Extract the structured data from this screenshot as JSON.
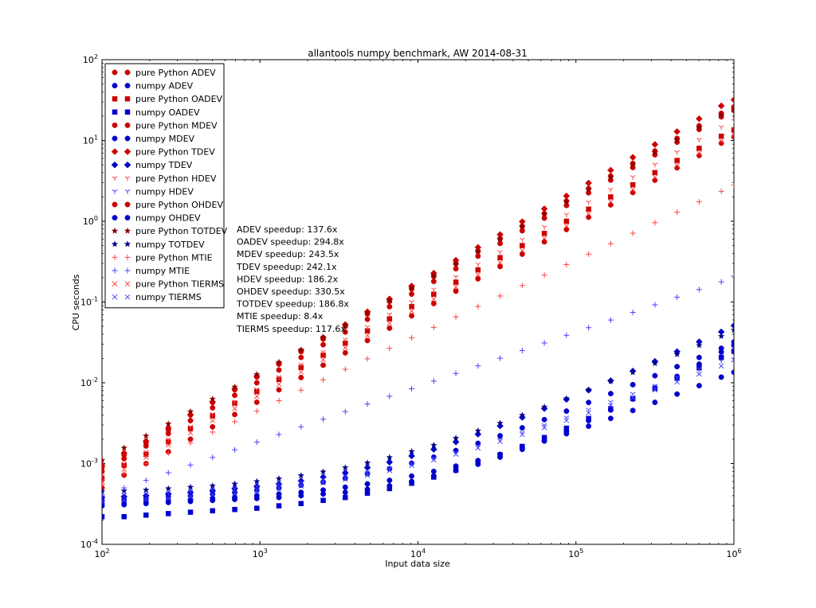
{
  "chart_data": {
    "type": "scatter",
    "title": "allantools numpy benchmark, AW 2014-08-31",
    "xlabel": "Input data size",
    "ylabel": "CPU seconds",
    "xscale": "log",
    "yscale": "log",
    "xlim": [
      100,
      1000000
    ],
    "ylim": [
      0.0001,
      100
    ],
    "x_ticks": [
      {
        "value": 100,
        "base": "10",
        "exp": "2"
      },
      {
        "value": 1000,
        "base": "10",
        "exp": "3"
      },
      {
        "value": 10000,
        "base": "10",
        "exp": "4"
      },
      {
        "value": 100000,
        "base": "10",
        "exp": "5"
      },
      {
        "value": 1000000,
        "base": "10",
        "exp": "6"
      }
    ],
    "y_ticks": [
      {
        "value": 0.0001,
        "base": "10",
        "exp": "-4"
      },
      {
        "value": 0.001,
        "base": "10",
        "exp": "-3"
      },
      {
        "value": 0.01,
        "base": "10",
        "exp": "-2"
      },
      {
        "value": 0.1,
        "base": "10",
        "exp": "-1"
      },
      {
        "value": 1,
        "base": "10",
        "exp": "0"
      },
      {
        "value": 10,
        "base": "10",
        "exp": "1"
      },
      {
        "value": 100,
        "base": "10",
        "exp": "2"
      }
    ],
    "grid": false,
    "legend_position": "top-left",
    "x": [
      100,
      138,
      190,
      263,
      363,
      501,
      692,
      955,
      1318,
      1820,
      2512,
      3467,
      4786,
      6607,
      9120,
      12589,
      17378,
      23988,
      33113,
      45709,
      63096,
      87096,
      120226,
      165959,
      229087,
      316228,
      436516,
      602560,
      831764,
      1000000
    ],
    "series": [
      {
        "name": "pure Python ADEV",
        "color": "#cc0000",
        "marker": "o",
        "values": [
          0.0009,
          0.00128,
          0.0018,
          0.0026,
          0.004,
          0.0057,
          0.0082,
          0.0118,
          0.017,
          0.0243,
          0.0348,
          0.0498,
          0.0712,
          0.1018,
          0.1455,
          0.208,
          0.297,
          0.425,
          0.608,
          0.869,
          1.243,
          1.777,
          2.54,
          3.63,
          5.19,
          7.42,
          10.61,
          15.17,
          21.69,
          26.0
        ]
      },
      {
        "name": "numpy ADEV",
        "color": "#0000cc",
        "marker": "o",
        "values": [
          0.0003,
          0.00031,
          0.00032,
          0.00033,
          0.00034,
          0.00035,
          0.00036,
          0.00037,
          0.00038,
          0.0004,
          0.00042,
          0.00044,
          0.00048,
          0.00053,
          0.0006,
          0.0007,
          0.00082,
          0.00098,
          0.0012,
          0.0015,
          0.0019,
          0.0025,
          0.0034,
          0.0046,
          0.0063,
          0.0087,
          0.012,
          0.017,
          0.024,
          0.029
        ]
      },
      {
        "name": "pure Python OADEV",
        "color": "#cc0000",
        "marker": "s",
        "values": [
          0.00065,
          0.00095,
          0.0013,
          0.00185,
          0.0027,
          0.0039,
          0.0056,
          0.0078,
          0.011,
          0.0155,
          0.022,
          0.031,
          0.044,
          0.062,
          0.088,
          0.125,
          0.176,
          0.25,
          0.354,
          0.5,
          0.707,
          1.0,
          1.41,
          2.0,
          2.83,
          4.0,
          5.66,
          8.0,
          11.3,
          13.5
        ]
      },
      {
        "name": "numpy OADEV",
        "color": "#0000cc",
        "marker": "s",
        "values": [
          0.00022,
          0.00022,
          0.00023,
          0.00024,
          0.00025,
          0.00026,
          0.00027,
          0.00028,
          0.0003,
          0.00032,
          0.00035,
          0.00038,
          0.00043,
          0.00049,
          0.00057,
          0.00068,
          0.00083,
          0.00102,
          0.00128,
          0.00163,
          0.0021,
          0.00274,
          0.00361,
          0.00478,
          0.00636,
          0.0085,
          0.0114,
          0.0153,
          0.0206,
          0.0246
        ]
      },
      {
        "name": "pure Python MDEV",
        "color": "#cc0000",
        "marker": "o",
        "values": [
          0.0008,
          0.00115,
          0.00165,
          0.00235,
          0.0034,
          0.0049,
          0.007,
          0.01,
          0.0144,
          0.0206,
          0.0296,
          0.0425,
          0.061,
          0.0875,
          0.1255,
          0.18,
          0.258,
          0.37,
          0.531,
          0.762,
          1.093,
          1.569,
          2.25,
          3.23,
          4.63,
          6.65,
          9.54,
          13.69,
          19.64,
          23.5
        ]
      },
      {
        "name": "numpy MDEV",
        "color": "#0000cc",
        "marker": "o",
        "values": [
          0.00035,
          0.00036,
          0.00037,
          0.00039,
          0.0004,
          0.00042,
          0.00044,
          0.00047,
          0.0005,
          0.00054,
          0.00059,
          0.00066,
          0.00075,
          0.00086,
          0.00101,
          0.0012,
          0.00145,
          0.00178,
          0.00221,
          0.00277,
          0.0035,
          0.00446,
          0.00571,
          0.00734,
          0.00947,
          0.01224,
          0.01586,
          0.02058,
          0.02673,
          0.032
        ]
      },
      {
        "name": "pure Python TDEV",
        "color": "#cc0000",
        "marker": "D",
        "values": [
          0.00095,
          0.00135,
          0.0019,
          0.00275,
          0.004,
          0.0058,
          0.0084,
          0.0121,
          0.0175,
          0.0252,
          0.0364,
          0.0525,
          0.0757,
          0.1093,
          0.1578,
          0.2277,
          0.3286,
          0.4742,
          0.6844,
          0.9877,
          1.4254,
          2.057,
          2.968,
          4.283,
          6.18,
          8.92,
          12.87,
          18.57,
          26.8,
          32.0
        ]
      },
      {
        "name": "numpy TDEV",
        "color": "#0000cc",
        "marker": "D",
        "values": [
          0.00038,
          0.00039,
          0.0004,
          0.00042,
          0.00044,
          0.00046,
          0.00049,
          0.00052,
          0.00056,
          0.00061,
          0.00068,
          0.00077,
          0.00089,
          0.00104,
          0.00124,
          0.0015,
          0.00185,
          0.00231,
          0.00292,
          0.00373,
          0.0048,
          0.00622,
          0.00811,
          0.01062,
          0.01396,
          0.0184,
          0.02431,
          0.03218,
          0.04266,
          0.051
        ]
      },
      {
        "name": "pure Python HDEV",
        "color": "#ff4444",
        "marker": "1",
        "values": [
          0.0007,
          0.001,
          0.0014,
          0.002,
          0.00285,
          0.0041,
          0.0058,
          0.0083,
          0.0118,
          0.0169,
          0.0241,
          0.0344,
          0.0491,
          0.0701,
          0.1001,
          0.1429,
          0.204,
          0.2912,
          0.4157,
          0.5935,
          0.8473,
          1.2096,
          1.7268,
          2.4651,
          3.519,
          5.0237,
          7.1716,
          10.238,
          14.615,
          17.5
        ]
      },
      {
        "name": "numpy HDEV",
        "color": "#4444ff",
        "marker": "1",
        "values": [
          0.0004,
          0.00041,
          0.00042,
          0.00043,
          0.00045,
          0.00047,
          0.00049,
          0.00052,
          0.00055,
          0.00059,
          0.00064,
          0.0007,
          0.00078,
          0.00088,
          0.00101,
          0.00117,
          0.00138,
          0.00165,
          0.00199,
          0.00243,
          0.00299,
          0.00371,
          0.00463,
          0.0058,
          0.00729,
          0.0092,
          0.01163,
          0.01472,
          0.01864,
          0.0223
        ]
      },
      {
        "name": "pure Python OHDEV",
        "color": "#cc0000",
        "marker": "o",
        "values": [
          0.0005,
          0.00072,
          0.001,
          0.0014,
          0.002,
          0.00285,
          0.00405,
          0.00575,
          0.00818,
          0.01162,
          0.01651,
          0.02347,
          0.03336,
          0.0474,
          0.0674,
          0.0958,
          0.1361,
          0.1935,
          0.275,
          0.3909,
          0.5557,
          0.7899,
          1.1228,
          1.596,
          2.2686,
          3.2247,
          4.5838,
          6.5157,
          9.2618,
          11.1
        ]
      },
      {
        "name": "numpy OHDEV",
        "color": "#0000cc",
        "marker": "o",
        "values": [
          0.00032,
          0.00033,
          0.00034,
          0.00035,
          0.00036,
          0.00037,
          0.00038,
          0.0004,
          0.00042,
          0.00044,
          0.00047,
          0.00051,
          0.00056,
          0.00062,
          0.0007,
          0.0008,
          0.00093,
          0.00109,
          0.0013,
          0.00157,
          0.00191,
          0.00234,
          0.0029,
          0.00362,
          0.00454,
          0.00572,
          0.00725,
          0.00922,
          0.01175,
          0.0135
        ]
      },
      {
        "name": "pure Python TOTDEV",
        "color": "#880000",
        "marker": "*",
        "values": [
          0.0011,
          0.00156,
          0.0022,
          0.0031,
          0.0044,
          0.0063,
          0.0089,
          0.0127,
          0.018,
          0.0256,
          0.0364,
          0.0517,
          0.0735,
          0.1044,
          0.1484,
          0.2109,
          0.2998,
          0.426,
          0.6055,
          0.8605,
          1.223,
          1.738,
          2.47,
          3.51,
          4.99,
          7.09,
          10.08,
          14.32,
          20.35,
          24.3
        ]
      },
      {
        "name": "numpy TOTDEV",
        "color": "#000088",
        "marker": "*",
        "values": [
          0.00045,
          0.00046,
          0.00047,
          0.00049,
          0.00051,
          0.00053,
          0.00056,
          0.0006,
          0.00065,
          0.00071,
          0.00079,
          0.00089,
          0.00102,
          0.00119,
          0.00141,
          0.00169,
          0.00206,
          0.00254,
          0.00316,
          0.00397,
          0.00502,
          0.00639,
          0.00817,
          0.01048,
          0.01348,
          0.01738,
          0.02246,
          0.02908,
          0.03771,
          0.045
        ]
      },
      {
        "name": "pure Python MTIE",
        "color": "#ff4444",
        "marker": "+",
        "values": [
          0.00055,
          0.00075,
          0.001,
          0.00135,
          0.0018,
          0.00245,
          0.0033,
          0.00445,
          0.006,
          0.0081,
          0.0109,
          0.0147,
          0.0198,
          0.0267,
          0.036,
          0.0485,
          0.0654,
          0.0881,
          0.1187,
          0.16,
          0.2156,
          0.2905,
          0.3915,
          0.5276,
          0.711,
          0.9582,
          1.2913,
          1.7402,
          2.3452,
          2.8
        ]
      },
      {
        "name": "numpy MTIE",
        "color": "#4444ff",
        "marker": "+",
        "values": [
          0.0004,
          0.0005,
          0.00062,
          0.00077,
          0.00096,
          0.00119,
          0.00148,
          0.00184,
          0.00229,
          0.00285,
          0.00354,
          0.0044,
          0.00547,
          0.0068,
          0.00845,
          0.0105,
          0.01305,
          0.01622,
          0.02016,
          0.02506,
          0.03115,
          0.03872,
          0.04813,
          0.05983,
          0.07437,
          0.09245,
          0.1149,
          0.1428,
          0.1775,
          0.21
        ]
      },
      {
        "name": "pure Python TIERMS",
        "color": "#ff4444",
        "marker": "x",
        "values": [
          0.0006,
          0.00085,
          0.0012,
          0.0017,
          0.0024,
          0.0034,
          0.0048,
          0.0068,
          0.0096,
          0.0136,
          0.0192,
          0.0272,
          0.0385,
          0.0544,
          0.077,
          0.1089,
          0.154,
          0.2179,
          0.3082,
          0.4359,
          0.6166,
          0.8721,
          1.2335,
          1.7447,
          2.4678,
          3.4906,
          4.9372,
          6.9834,
          9.8776,
          11.8
        ]
      },
      {
        "name": "numpy TIERMS",
        "color": "#4444ff",
        "marker": "x",
        "values": [
          0.00034,
          0.00035,
          0.00036,
          0.00037,
          0.00039,
          0.00041,
          0.00043,
          0.00046,
          0.00049,
          0.00053,
          0.00058,
          0.00064,
          0.00072,
          0.00082,
          0.00095,
          0.00111,
          0.00131,
          0.00156,
          0.00188,
          0.00228,
          0.00279,
          0.00343,
          0.00424,
          0.00526,
          0.00655,
          0.00818,
          0.01024,
          0.01284,
          0.01612,
          0.0192
        ]
      }
    ],
    "annotations": [
      "ADEV speedup: 137.6x",
      "OADEV speedup: 294.8x",
      "MDEV speedup: 243.5x",
      "TDEV speedup: 242.1x",
      "HDEV speedup: 186.2x",
      "OHDEV speedup: 330.5x",
      "TOTDEV speedup: 186.8x",
      "MTIE speedup: 8.4x",
      "TIERMS speedup: 117.6x"
    ]
  }
}
